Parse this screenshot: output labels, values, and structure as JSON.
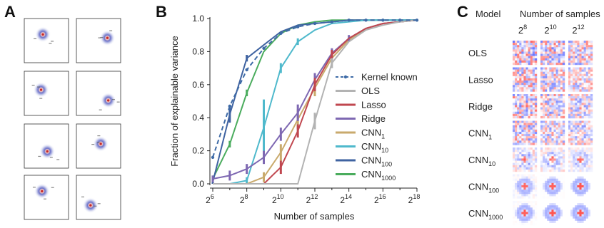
{
  "panels": {
    "a": {
      "letter": "A",
      "rf_count": 8
    },
    "b": {
      "letter": "B"
    },
    "c": {
      "letter": "C"
    }
  },
  "chart_data": {
    "type": "line",
    "title": "",
    "xlabel": "Number of samples",
    "ylabel": "Fraction of explainable variance",
    "x_scale": "log2",
    "x_exponents": [
      6,
      7,
      8,
      9,
      10,
      11,
      12,
      13,
      14,
      15,
      16,
      17,
      18
    ],
    "x_tick_exponents": [
      6,
      8,
      10,
      12,
      14,
      16,
      18
    ],
    "x_tick_base": "2",
    "ylim": [
      0,
      1
    ],
    "y_ticks": [
      "0.0",
      "0.2",
      "0.4",
      "0.6",
      "0.8",
      "1.0"
    ],
    "legend_position": "right",
    "series": [
      {
        "name": "Kernel known",
        "main": "Kernel known",
        "sub": "",
        "color": "#3d6aa6",
        "dashed": true,
        "markers": true,
        "values": [
          0.16,
          0.47,
          0.69,
          0.82,
          0.91,
          0.95,
          0.97,
          0.98,
          0.99,
          0.99,
          0.99,
          0.99,
          0.99
        ],
        "err": []
      },
      {
        "name": "OLS",
        "main": "OLS",
        "sub": "",
        "color": "#b3b3b3",
        "values": [
          0,
          0,
          0,
          0,
          0,
          0,
          0.38,
          0.73,
          0.86,
          0.93,
          0.96,
          0.98,
          0.99
        ],
        "err": [
          null,
          null,
          null,
          null,
          null,
          null,
          0.05,
          0.03,
          null,
          null,
          null,
          null,
          null
        ]
      },
      {
        "name": "Lasso",
        "main": "Lasso",
        "sub": "",
        "color": "#c0474f",
        "values": [
          0,
          0,
          0,
          0,
          0.1,
          0.32,
          0.6,
          0.78,
          0.88,
          0.94,
          0.97,
          0.98,
          0.99
        ],
        "err": [
          null,
          null,
          null,
          null,
          0.04,
          0.04,
          0.04,
          0.03,
          null,
          null,
          null,
          null,
          null
        ]
      },
      {
        "name": "Ridge",
        "main": "Ridge",
        "sub": "",
        "color": "#7e68b2",
        "values": [
          0.03,
          0.05,
          0.09,
          0.16,
          0.3,
          0.43,
          0.63,
          0.79,
          0.88,
          0.94,
          0.97,
          0.98,
          0.99
        ],
        "err": [
          0.02,
          0.03,
          0.03,
          0.04,
          0.04,
          0.05,
          0.04,
          0.03,
          0.02,
          null,
          null,
          null,
          null
        ]
      },
      {
        "name": "CNN1",
        "main": "CNN",
        "sub": "1",
        "color": "#c9aa6c",
        "values": [
          0,
          0,
          0,
          0.04,
          0.19,
          0.39,
          0.58,
          0.76,
          0.87,
          0.94,
          0.97,
          0.98,
          0.99
        ],
        "err": [
          null,
          null,
          null,
          0.03,
          0.05,
          0.06,
          0.05,
          0.03,
          null,
          null,
          null,
          null,
          null
        ]
      },
      {
        "name": "CNN10",
        "main": "CNN",
        "sub": "10",
        "color": "#4fb9cc",
        "values": [
          0,
          0,
          0.02,
          0.34,
          0.7,
          0.86,
          0.93,
          0.97,
          0.98,
          0.99,
          0.99,
          0.99,
          0.99
        ],
        "err": [
          null,
          null,
          0.02,
          0.17,
          0.03,
          0.02,
          null,
          null,
          null,
          null,
          null,
          null,
          null
        ]
      },
      {
        "name": "CNN100",
        "main": "CNN",
        "sub": "100",
        "color": "#3f63a1",
        "values": [
          0.01,
          0.42,
          0.76,
          0.84,
          0.92,
          0.96,
          0.97,
          0.98,
          0.99,
          0.99,
          0.99,
          0.99,
          0.99
        ],
        "err": [
          0.01,
          0.05,
          0.02,
          null,
          null,
          null,
          null,
          null,
          null,
          null,
          null,
          null,
          null
        ]
      },
      {
        "name": "CNN1000",
        "main": "CNN",
        "sub": "1000",
        "color": "#4aac5d",
        "values": [
          0.03,
          0.24,
          0.55,
          0.8,
          0.91,
          0.96,
          0.98,
          0.99,
          0.99,
          0.99,
          0.99,
          0.99,
          0.99
        ],
        "err": [
          0.02,
          0.02,
          0.02,
          null,
          null,
          null,
          null,
          null,
          null,
          null,
          null,
          null,
          null
        ]
      }
    ]
  },
  "panel_c": {
    "model_header": "Model",
    "samples_header": "Number of samples",
    "column_exponents": [
      "8",
      "10",
      "12"
    ],
    "column_base": "2",
    "rows": [
      {
        "main": "OLS",
        "sub": "",
        "signal": 0.0,
        "noise": 0.9
      },
      {
        "main": "Lasso",
        "sub": "",
        "signal": 0.0,
        "noise": 0.8
      },
      {
        "main": "Ridge",
        "sub": "",
        "signal": 0.1,
        "noise": 0.8
      },
      {
        "main": "CNN",
        "sub": "1",
        "signal": 0.2,
        "noise": 0.75
      },
      {
        "main": "CNN",
        "sub": "10",
        "signal": 0.6,
        "noise": 0.4
      },
      {
        "main": "CNN",
        "sub": "100",
        "signal": 0.9,
        "noise": 0.1
      },
      {
        "main": "CNN",
        "sub": "1000",
        "signal": 0.95,
        "noise": 0.05
      }
    ]
  }
}
